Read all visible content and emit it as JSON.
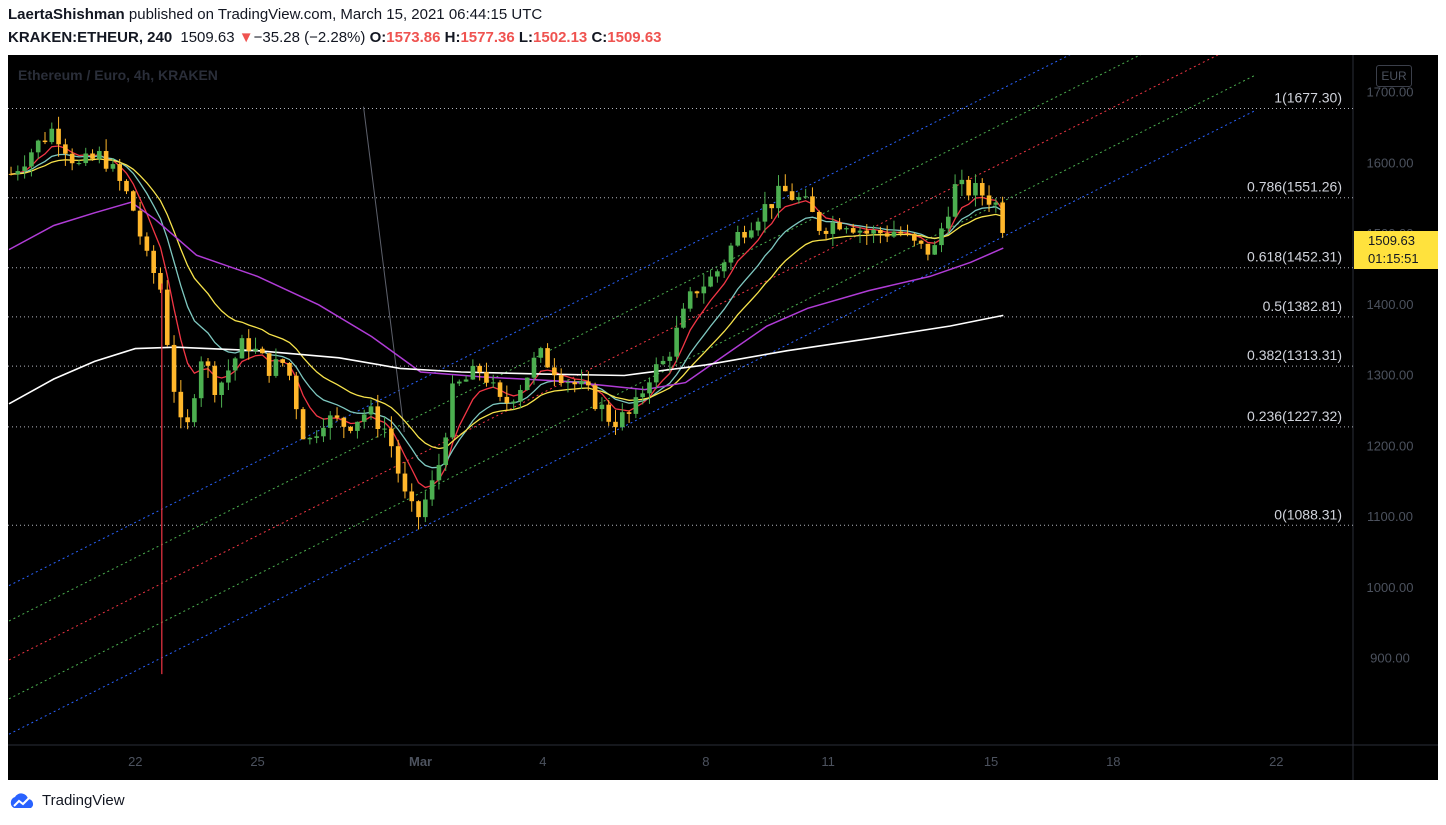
{
  "header": {
    "author": "LaertaShishman",
    "published_text": "published on TradingView.com, March 15, 2021 06:44:15 UTC",
    "symbol": "KRAKEN:ETHEUR, 240",
    "last": "1509.63",
    "change_arrow": "▼",
    "change": "−35.28 (−2.28%)",
    "o_label": "O:",
    "o": "1573.86",
    "h_label": "H:",
    "h": "1577.36",
    "l_label": "L:",
    "l": "1502.13",
    "c_label": "C:",
    "c": "1509.63"
  },
  "chart": {
    "title": "Ethereum / Euro, 4h, KRAKEN",
    "currency": "EUR",
    "price_tag": {
      "price": "1509.63",
      "countdown": "01:15:51"
    }
  },
  "footer": {
    "logo_text": "TradingView"
  },
  "colors": {
    "up": "#4caf50",
    "down": "#ffb72b",
    "background": "#000000",
    "ema_red": "#f23645",
    "ema_teal": "#7ec8c0",
    "ema_yellow": "#f7e34b",
    "ma_purple": "#b03cd6",
    "ma_white": "#ffffff",
    "channel": [
      "#2962ff",
      "#4caf50",
      "#f23645"
    ]
  },
  "chart_data": {
    "type": "candlestick",
    "timeframe": "4h",
    "symbol": "ETHEUR",
    "exchange": "KRAKEN",
    "yticks": [
      900,
      1000,
      1100,
      1200,
      1300,
      1400,
      1500,
      1600,
      1700
    ],
    "xticks": [
      {
        "label": "22",
        "day": 22
      },
      {
        "label": "25",
        "day": 25
      },
      {
        "label": "Mar",
        "day": 29
      },
      {
        "label": "4",
        "day": 32
      },
      {
        "label": "8",
        "day": 36
      },
      {
        "label": "11",
        "day": 39
      },
      {
        "label": "15",
        "day": 43
      },
      {
        "label": "18",
        "day": 46
      },
      {
        "label": "22",
        "day": 50
      }
    ],
    "fib_levels": [
      {
        "ratio": "1",
        "price": 1677.3
      },
      {
        "ratio": "0.786",
        "price": 1551.26
      },
      {
        "ratio": "0.618",
        "price": 1452.31
      },
      {
        "ratio": "0.5",
        "price": 1382.81
      },
      {
        "ratio": "0.382",
        "price": 1313.31
      },
      {
        "ratio": "0.236",
        "price": 1227.32
      },
      {
        "ratio": "0",
        "price": 1088.31
      }
    ],
    "price_anchors": [
      {
        "day": 18.95,
        "price": 1585
      },
      {
        "day": 19.4,
        "price": 1615
      },
      {
        "day": 20.0,
        "price": 1650
      },
      {
        "day": 20.6,
        "price": 1595
      },
      {
        "day": 21.2,
        "price": 1612
      },
      {
        "day": 21.9,
        "price": 1545
      },
      {
        "day": 22.3,
        "price": 1460
      },
      {
        "day": 22.6,
        "price": 1430
      },
      {
        "day": 22.9,
        "price": 1300
      },
      {
        "day": 23.2,
        "price": 1200
      },
      {
        "day": 23.6,
        "price": 1330
      },
      {
        "day": 24.0,
        "price": 1280
      },
      {
        "day": 24.7,
        "price": 1350
      },
      {
        "day": 25.3,
        "price": 1310
      },
      {
        "day": 25.7,
        "price": 1320
      },
      {
        "day": 26.2,
        "price": 1200
      },
      {
        "day": 26.6,
        "price": 1240
      },
      {
        "day": 27.2,
        "price": 1230
      },
      {
        "day": 27.7,
        "price": 1250
      },
      {
        "day": 28.2,
        "price": 1220
      },
      {
        "day": 28.6,
        "price": 1130
      },
      {
        "day": 28.9,
        "price": 1095
      },
      {
        "day": 29.4,
        "price": 1160
      },
      {
        "day": 29.8,
        "price": 1280
      },
      {
        "day": 30.5,
        "price": 1310
      },
      {
        "day": 31.0,
        "price": 1255
      },
      {
        "day": 31.5,
        "price": 1290
      },
      {
        "day": 31.9,
        "price": 1330
      },
      {
        "day": 32.5,
        "price": 1300
      },
      {
        "day": 33.2,
        "price": 1270
      },
      {
        "day": 33.7,
        "price": 1235
      },
      {
        "day": 34.2,
        "price": 1245
      },
      {
        "day": 34.6,
        "price": 1300
      },
      {
        "day": 35.0,
        "price": 1320
      },
      {
        "day": 35.7,
        "price": 1420
      },
      {
        "day": 36.2,
        "price": 1440
      },
      {
        "day": 36.8,
        "price": 1500
      },
      {
        "day": 37.3,
        "price": 1530
      },
      {
        "day": 37.9,
        "price": 1560
      },
      {
        "day": 38.4,
        "price": 1545
      },
      {
        "day": 38.8,
        "price": 1510
      },
      {
        "day": 39.4,
        "price": 1520
      },
      {
        "day": 40.0,
        "price": 1500
      },
      {
        "day": 40.7,
        "price": 1505
      },
      {
        "day": 41.2,
        "price": 1480
      },
      {
        "day": 41.6,
        "price": 1475
      },
      {
        "day": 42.1,
        "price": 1565
      },
      {
        "day": 42.7,
        "price": 1560
      },
      {
        "day": 43.1,
        "price": 1545
      },
      {
        "day": 43.3,
        "price": 1510
      }
    ],
    "ma_slow_white": [
      {
        "day": 18.9,
        "price": 1260
      },
      {
        "day": 20.0,
        "price": 1295
      },
      {
        "day": 21.0,
        "price": 1320
      },
      {
        "day": 22.0,
        "price": 1338
      },
      {
        "day": 23.0,
        "price": 1340
      },
      {
        "day": 25.0,
        "price": 1335
      },
      {
        "day": 27.0,
        "price": 1325
      },
      {
        "day": 28.5,
        "price": 1310
      },
      {
        "day": 30.0,
        "price": 1305
      },
      {
        "day": 32.0,
        "price": 1302
      },
      {
        "day": 34.0,
        "price": 1300
      },
      {
        "day": 36.0,
        "price": 1315
      },
      {
        "day": 38.0,
        "price": 1335
      },
      {
        "day": 40.0,
        "price": 1352
      },
      {
        "day": 42.0,
        "price": 1370
      },
      {
        "day": 43.3,
        "price": 1385
      }
    ],
    "ma_mid_purple": [
      {
        "day": 18.9,
        "price": 1478
      },
      {
        "day": 20.0,
        "price": 1512
      },
      {
        "day": 21.0,
        "price": 1530
      },
      {
        "day": 21.9,
        "price": 1545
      },
      {
        "day": 22.5,
        "price": 1520
      },
      {
        "day": 23.5,
        "price": 1470
      },
      {
        "day": 25.0,
        "price": 1440
      },
      {
        "day": 26.5,
        "price": 1400
      },
      {
        "day": 27.8,
        "price": 1355
      },
      {
        "day": 29.0,
        "price": 1305
      },
      {
        "day": 30.5,
        "price": 1298
      },
      {
        "day": 32.5,
        "price": 1292
      },
      {
        "day": 34.5,
        "price": 1280
      },
      {
        "day": 35.5,
        "price": 1290
      },
      {
        "day": 36.5,
        "price": 1330
      },
      {
        "day": 37.5,
        "price": 1370
      },
      {
        "day": 38.5,
        "price": 1395
      },
      {
        "day": 40.0,
        "price": 1420
      },
      {
        "day": 41.5,
        "price": 1440
      },
      {
        "day": 42.5,
        "price": 1460
      },
      {
        "day": 43.3,
        "price": 1480
      }
    ],
    "channel_lines": [
      {
        "color": "#2962ff",
        "day0": 18.9,
        "p0": 1003,
        "day1": 49.5,
        "p1": 1885
      },
      {
        "color": "#4caf50",
        "day0": 18.9,
        "p0": 953,
        "day1": 49.5,
        "p1": 1835
      },
      {
        "color": "#f23645",
        "day0": 18.9,
        "p0": 898,
        "day1": 49.5,
        "p1": 1780
      },
      {
        "color": "#4caf50",
        "day0": 18.9,
        "p0": 843,
        "day1": 49.5,
        "p1": 1725
      },
      {
        "color": "#2962ff",
        "day0": 18.9,
        "p0": 793,
        "day1": 49.5,
        "p1": 1675
      }
    ],
    "gray_line": {
      "day0": 27.6,
      "p0": 1680,
      "day1": 28.6,
      "p1": 1220
    },
    "wick_spike": {
      "day": 22.65,
      "low": 878
    }
  }
}
